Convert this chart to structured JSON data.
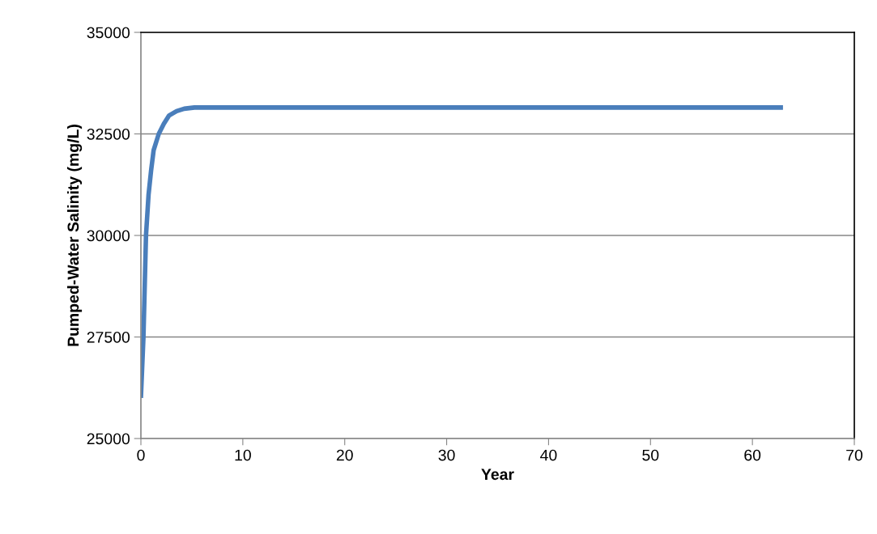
{
  "chart_data": {
    "type": "line",
    "xlabel": "Year",
    "ylabel": "Pumped-Water Salinity (mg/L)",
    "x": [
      0,
      0.25,
      0.5,
      0.75,
      1.0,
      1.25,
      1.75,
      2.25,
      2.75,
      3.5,
      4.25,
      5.25,
      7,
      10,
      20,
      30,
      40,
      50,
      63
    ],
    "series": [
      {
        "color": "#4a7ebb",
        "values": [
          26000,
          27500,
          30000,
          31000,
          31600,
          32100,
          32500,
          32750,
          32950,
          33060,
          33120,
          33150,
          33150,
          33150,
          33150,
          33150,
          33150,
          33150,
          33150
        ]
      }
    ],
    "xlim": [
      0,
      70
    ],
    "xticks": [
      0,
      10,
      20,
      30,
      40,
      50,
      60,
      70
    ],
    "ylim": [
      25000,
      35000
    ],
    "yticks": [
      25000,
      27500,
      30000,
      32500,
      35000
    ],
    "grid": "y",
    "marker": "none",
    "line_style": "solid"
  }
}
